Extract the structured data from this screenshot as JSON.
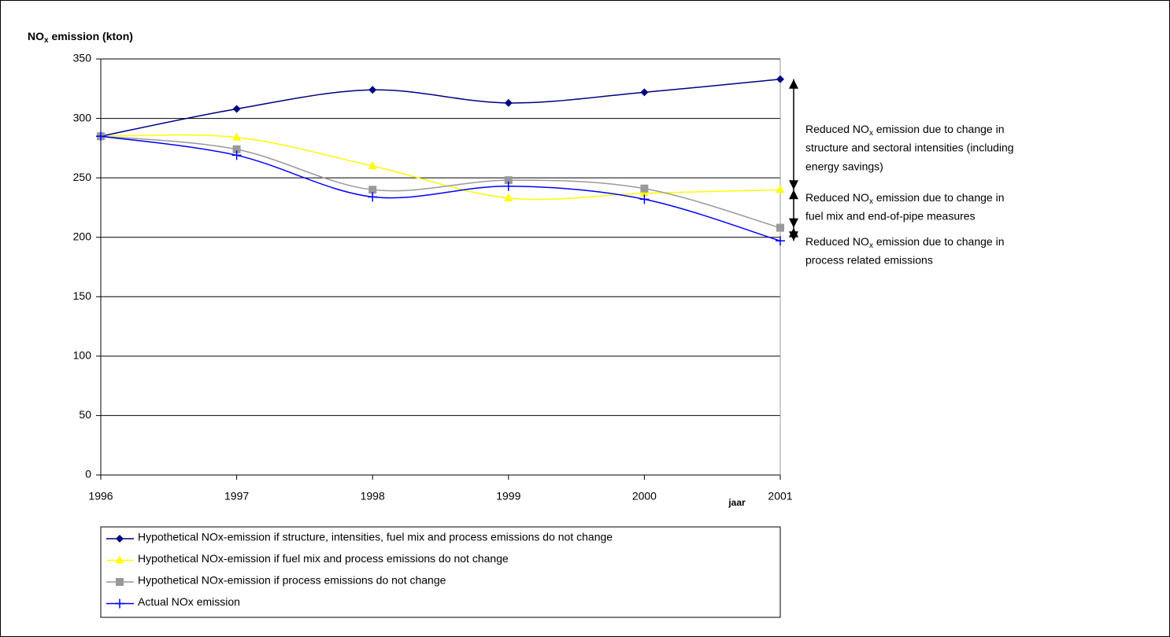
{
  "chart_data": {
    "type": "line",
    "y_label": [
      "NO",
      "x",
      " emission (kton)"
    ],
    "x_label": "jaar",
    "categories": [
      "1996",
      "1997",
      "1998",
      "1999",
      "2000",
      "2001"
    ],
    "ylim": [
      0,
      350
    ],
    "yticks": [
      0,
      50,
      100,
      150,
      200,
      250,
      300,
      350
    ],
    "grid": true,
    "series": [
      {
        "name": "Hypothetical NOx-emission if structure, intensities, fuel mix and process emissions do not change",
        "color": "#000080",
        "marker": "diamond",
        "values": [
          285,
          308,
          324,
          313,
          322,
          333
        ]
      },
      {
        "name": "Hypothetical NOx-emission if fuel mix and process emissions do not change",
        "color": "#ffff00",
        "marker": "triangle",
        "values": [
          285,
          284,
          260,
          233,
          237,
          240
        ]
      },
      {
        "name": "Hypothetical NOx-emission if process emissions do not change",
        "color": "#999999",
        "marker": "square",
        "values": [
          285,
          274,
          240,
          248,
          241,
          208
        ]
      },
      {
        "name": "Actual NOx emission",
        "color": "#0000ff",
        "marker": "plus",
        "values": [
          285,
          269,
          234,
          243,
          232,
          197
        ]
      }
    ],
    "annotations": [
      {
        "first": [
          "Reduced NO",
          "x",
          " emission due to change in"
        ],
        "lines": [
          "structure and sectoral intensities (including",
          "energy savings)"
        ]
      },
      {
        "first": [
          "Reduced NO",
          "x",
          " emission due to change in"
        ],
        "lines": [
          "fuel mix and end-of-pipe measures"
        ]
      },
      {
        "first": [
          "Reduced NO",
          "x",
          " emission due to change in"
        ],
        "lines": [
          "process related emissions"
        ]
      }
    ]
  }
}
